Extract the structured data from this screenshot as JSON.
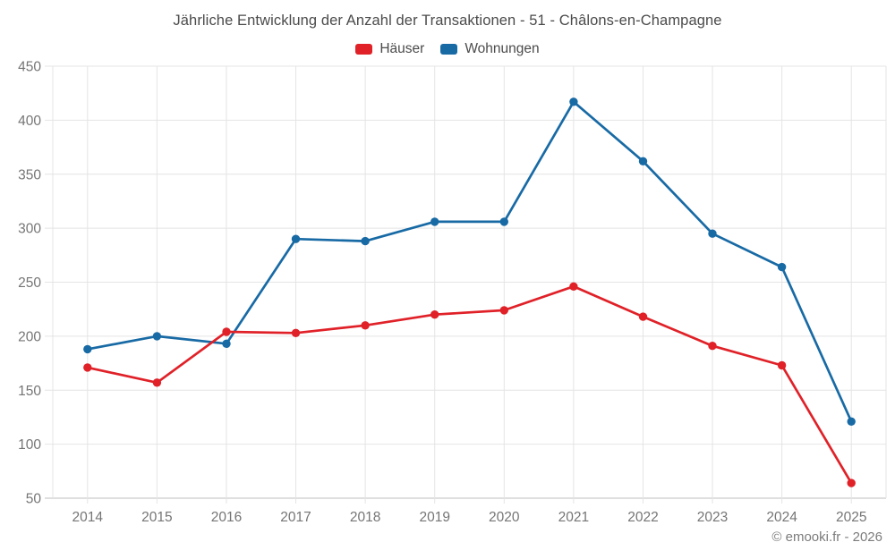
{
  "chart": {
    "title": "Jährliche Entwicklung der Anzahl der Transaktionen - 51 - Châlons-en-Champagne"
  },
  "legend": [
    {
      "label": "Häuser",
      "color": "#e02128"
    },
    {
      "label": "Wohnungen",
      "color": "#186aa5"
    }
  ],
  "footer": {
    "copyright": "© emooki.fr - 2026"
  },
  "chart_data": {
    "type": "line",
    "title": "Jährliche Entwicklung der Anzahl der Transaktionen - 51 - Châlons-en-Champagne",
    "categories": [
      "2014",
      "2015",
      "2016",
      "2017",
      "2018",
      "2019",
      "2020",
      "2021",
      "2022",
      "2023",
      "2024",
      "2025"
    ],
    "series": [
      {
        "name": "Häuser",
        "color": "#e02128",
        "values": [
          171,
          157,
          204,
          203,
          210,
          220,
          224,
          246,
          218,
          191,
          173,
          64
        ]
      },
      {
        "name": "Wohnungen",
        "color": "#186aa5",
        "values": [
          188,
          200,
          193,
          290,
          288,
          306,
          306,
          417,
          362,
          295,
          264,
          121
        ]
      }
    ],
    "xlabel": "",
    "ylabel": "",
    "ylim": [
      50,
      450
    ],
    "ytick_step": 50,
    "yticks": [
      50,
      100,
      150,
      200,
      250,
      300,
      350,
      400,
      450
    ],
    "grid": true,
    "legend_position": "top",
    "marker": "circle"
  }
}
